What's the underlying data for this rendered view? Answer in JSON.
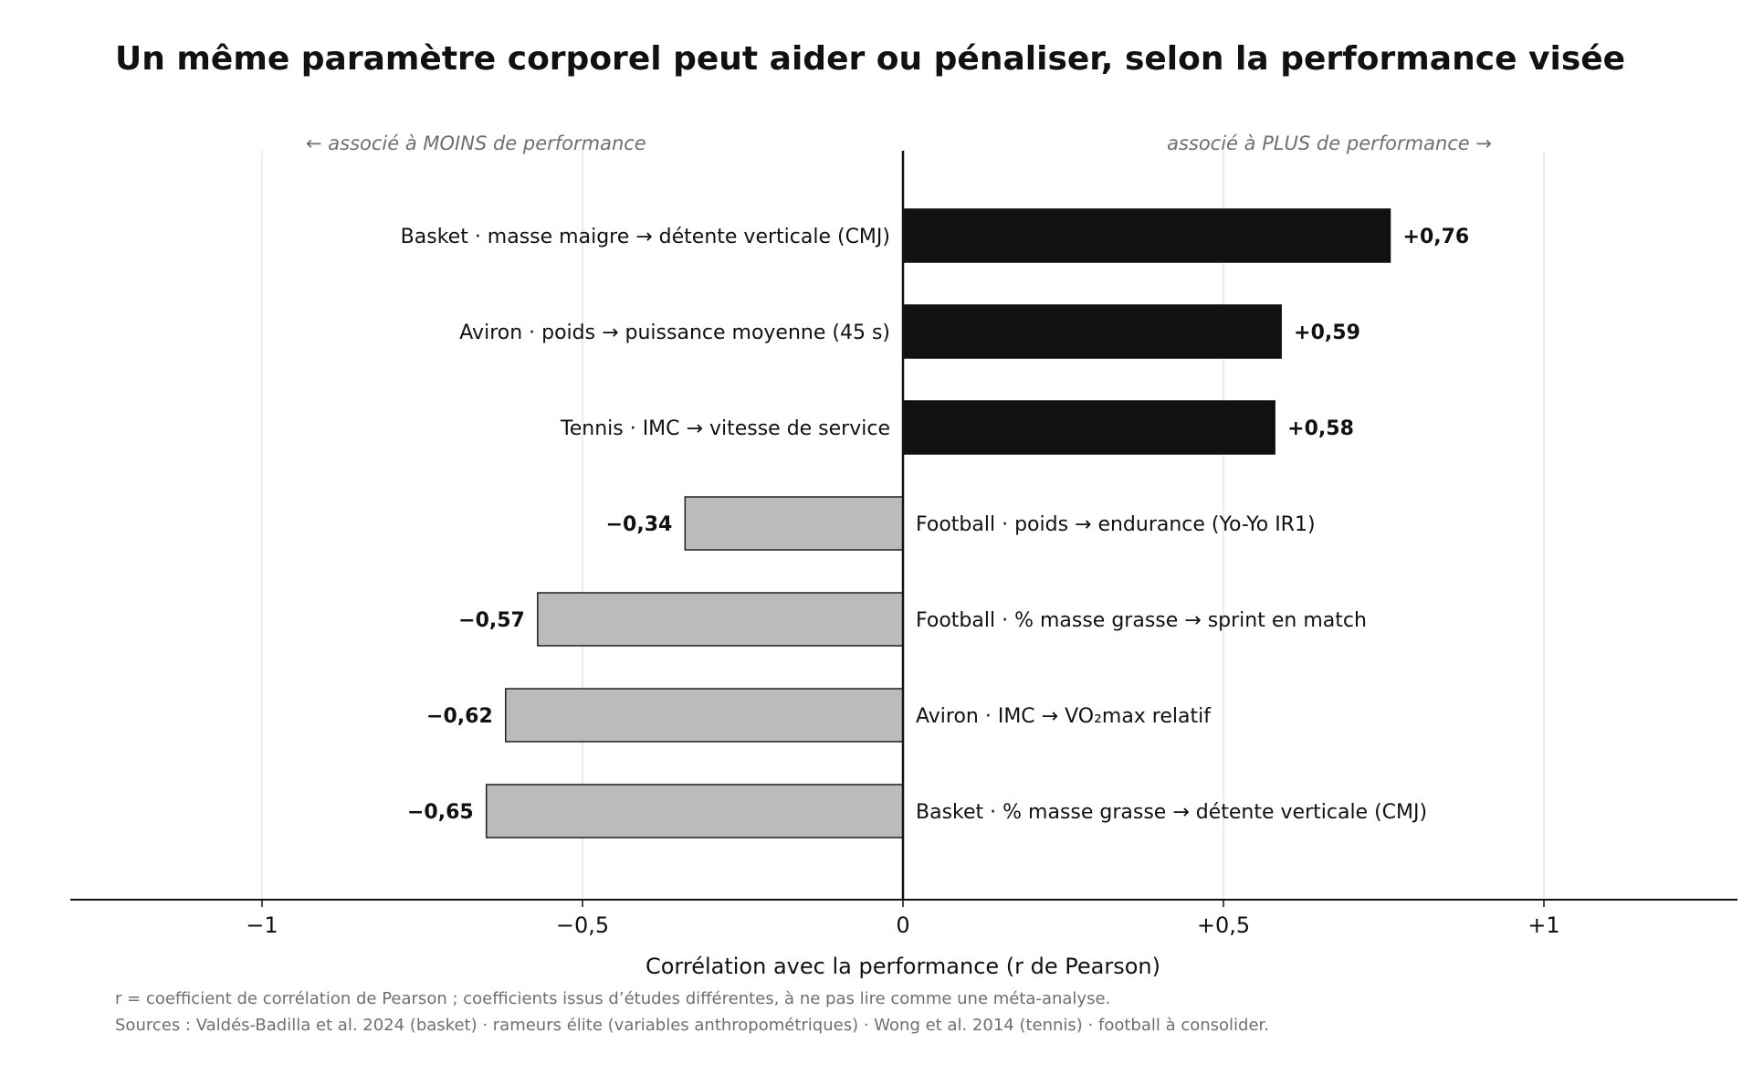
{
  "chart_data": {
    "type": "bar",
    "orientation": "horizontal",
    "title": "Un même paramètre corporel peut aider ou pénaliser, selon la performance visée",
    "xlabel": "Corrélation avec la performance  (r de Pearson)",
    "ylabel": "",
    "xlim": [
      -1.3,
      1.3
    ],
    "xticks": [
      -1,
      -0.5,
      0,
      0.5,
      1
    ],
    "xtick_labels": [
      "−1",
      "−0,5",
      "0",
      "+0,5",
      "+1"
    ],
    "grid": "vertical",
    "direction_left": "←  associé à MOINS de performance",
    "direction_right": "associé à PLUS de performance  →",
    "categories": [
      "Basket · masse maigre → détente verticale (CMJ)",
      "Aviron · poids → puissance moyenne (45 s)",
      "Tennis · IMC → vitesse de service",
      "Football · poids → endurance (Yo-Yo IR1)",
      "Football · % masse grasse → sprint en match",
      "Aviron · IMC → VO₂max relatif",
      "Basket · % masse grasse → détente verticale (CMJ)"
    ],
    "values": [
      0.76,
      0.59,
      0.58,
      -0.34,
      -0.57,
      -0.62,
      -0.65
    ],
    "value_labels": [
      "+0,76",
      "+0,59",
      "+0,58",
      "−0,34",
      "−0,57",
      "−0,62",
      "−0,65"
    ],
    "colors": {
      "positive": "#111111",
      "negative": "#bbbbbb",
      "negative_edge": "#1f1f1f",
      "grid": "#e6e6e6",
      "axis": "#111111",
      "muted": "#6f6f6f"
    }
  },
  "footnotes": [
    "r = coefficient de corrélation de Pearson ; coefficients issus d’études différentes, à ne pas lire comme une méta-analyse.",
    "Sources : Valdés-Badilla et al. 2024 (basket) · rameurs élite (variables anthropométriques) · Wong et al. 2014 (tennis) · football à consolider."
  ]
}
